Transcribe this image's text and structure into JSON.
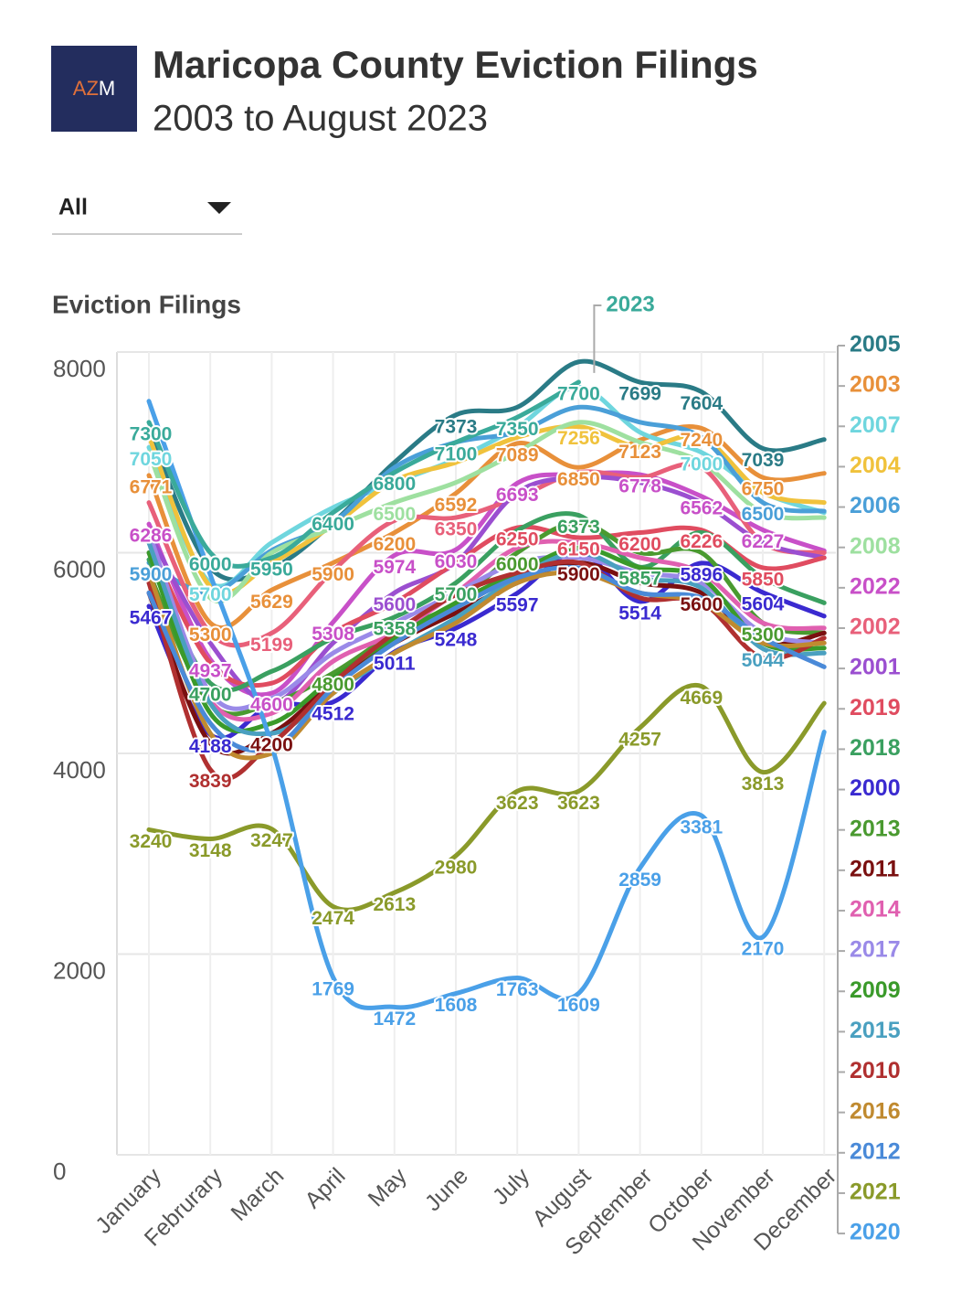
{
  "logo": [
    "AZ",
    "M"
  ],
  "filter": "All",
  "chart_data": {
    "type": "line",
    "title": "Maricopa County Eviction Filings",
    "subtitle": "2003 to August 2023",
    "y_label": "Eviction Filings",
    "categories": [
      "January",
      "Februrary",
      "March",
      "April",
      "May",
      "June",
      "July",
      "August",
      "September",
      "October",
      "November",
      "December"
    ],
    "ylim": [
      0,
      8000
    ],
    "yticks": [
      0,
      2000,
      4000,
      6000,
      8000
    ],
    "grid": true,
    "series": [
      {
        "name": "2005",
        "color": "#2a7b86",
        "values": [
          7200,
          5850,
          5850,
          6300,
          6900,
          7373,
          7450,
          7902,
          7699,
          7604,
          7039,
          7128
        ]
      },
      {
        "name": "2003",
        "color": "#e8903a",
        "values": [
          6771,
          5300,
          5629,
          5900,
          6200,
          6592,
          7089,
          6850,
          7123,
          7240,
          6750,
          6791
        ]
      },
      {
        "name": "2007",
        "color": "#6fd6de",
        "values": [
          7050,
          5700,
          6100,
          6450,
          6700,
          6933,
          7250,
          7650,
          7200,
          7000,
          6600,
          6400
        ]
      },
      {
        "name": "2004",
        "color": "#f0c23c",
        "values": [
          7163,
          5662,
          5900,
          6275,
          6716,
          6900,
          7150,
          7256,
          7050,
          7150,
          6598,
          6500
        ]
      },
      {
        "name": "2006",
        "color": "#4a9fd8",
        "values": [
          5900,
          5600,
          6023,
          6300,
          6850,
          7100,
          7200,
          7450,
          7300,
          7150,
          6500,
          6414
        ]
      },
      {
        "name": "2008",
        "color": "#9ee0a0",
        "values": [
          7000,
          5550,
          6000,
          6250,
          6500,
          6700,
          7000,
          7300,
          7100,
          6900,
          6400,
          6350
        ]
      },
      {
        "name": "2022",
        "color": "#c850c8",
        "values": [
          6286,
          4937,
          4600,
          5308,
          5974,
          6030,
          6693,
          6778,
          6778,
          6562,
          6227,
          6019
        ]
      },
      {
        "name": "2002",
        "color": "#e8607a",
        "values": [
          6500,
          5200,
          5199,
          5821,
          6321,
          6350,
          6550,
          6800,
          6750,
          6850,
          6100,
          6000
        ]
      },
      {
        "name": "2001",
        "color": "#9b4fd0",
        "values": [
          6200,
          5100,
          4500,
          5100,
          5600,
          5900,
          6600,
          6750,
          6700,
          6500,
          6100,
          5950
        ]
      },
      {
        "name": "2019",
        "color": "#e04c60",
        "values": [
          6100,
          4900,
          4700,
          5200,
          5500,
          5900,
          6250,
          6150,
          6200,
          6226,
          5850,
          5950
        ]
      },
      {
        "name": "2018",
        "color": "#3aa060",
        "values": [
          5931,
          4700,
          4818,
          5150,
          5358,
          5700,
          6222,
          6373,
          5857,
          6200,
          5750,
          5500
        ]
      },
      {
        "name": "2000",
        "color": "#3a2ad0",
        "values": [
          5467,
          4188,
          4481,
          4512,
          5011,
          5248,
          5597,
          6008,
          5514,
          5896,
          5604,
          5368
        ]
      },
      {
        "name": "2013",
        "color": "#4a9a30",
        "values": [
          5800,
          4500,
          4500,
          4800,
          5200,
          5500,
          6000,
          6300,
          6000,
          6000,
          5300,
          5200
        ]
      },
      {
        "name": "2011",
        "color": "#7a1010",
        "values": [
          5600,
          4100,
          4200,
          4700,
          5100,
          5400,
          5700,
          5900,
          5700,
          5600,
          5100,
          5200
        ]
      },
      {
        "name": "2014",
        "color": "#e060b0",
        "values": [
          6000,
          4528,
          4400,
          4918,
          5200,
          5600,
          6050,
          6100,
          5950,
          5800,
          5300,
          5250
        ]
      },
      {
        "name": "2017",
        "color": "#9a8ae8",
        "values": [
          6200,
          4600,
          4550,
          5000,
          5300,
          5600,
          5900,
          5950,
          5800,
          5700,
          5200,
          5100
        ]
      },
      {
        "name": "2009",
        "color": "#3a9a2a",
        "values": [
          6000,
          4400,
          4300,
          4750,
          5150,
          5500,
          5800,
          6050,
          5850,
          5750,
          5100,
          5050
        ]
      },
      {
        "name": "2015",
        "color": "#4aa0c0",
        "values": [
          6100,
          4500,
          4200,
          4600,
          5000,
          5350,
          5750,
          6000,
          5750,
          5650,
          5044,
          5000
        ]
      },
      {
        "name": "2010",
        "color": "#b03030",
        "values": [
          5700,
          3839,
          4100,
          4700,
          5200,
          5581,
          5800,
          5900,
          5550,
          5507,
          4950,
          5150
        ]
      },
      {
        "name": "2016",
        "color": "#c08a30",
        "values": [
          5800,
          4200,
          4000,
          4600,
          5000,
          5300,
          5700,
          5800,
          5600,
          5500,
          5100,
          5100
        ]
      },
      {
        "name": "2012",
        "color": "#4a8ad8",
        "values": [
          5600,
          4300,
          4050,
          4650,
          5100,
          5450,
          5750,
          5850,
          5600,
          5550,
          5150,
          4862
        ]
      },
      {
        "name": "2021",
        "color": "#8a9a2a",
        "values": [
          3240,
          3148,
          3247,
          2474,
          2613,
          2980,
          3623,
          3623,
          4257,
          4669,
          3813,
          4500
        ]
      },
      {
        "name": "2020",
        "color": "#4aa0e8",
        "values": [
          7510,
          5780,
          4080,
          1769,
          1472,
          1608,
          1763,
          1609,
          2859,
          3381,
          2170,
          4214
        ]
      },
      {
        "name": "2023",
        "color": "#3aaa9a",
        "values": [
          7300,
          6000,
          5950,
          6400,
          6800,
          7100,
          7350,
          7700,
          null,
          null,
          null,
          null
        ]
      }
    ]
  }
}
